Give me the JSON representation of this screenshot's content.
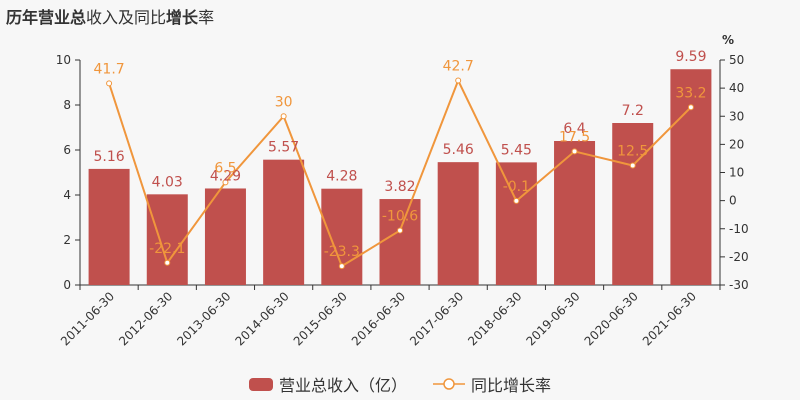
{
  "title_parts": [
    {
      "text": "历年",
      "bold": true
    },
    {
      "text": "营业总",
      "bold": true
    },
    {
      "text": "收入及同比",
      "bold": false
    },
    {
      "text": "增长",
      "bold": true
    },
    {
      "text": "率",
      "bold": false
    }
  ],
  "colors": {
    "bar": "#c0504d",
    "line": "#f0963c",
    "axis": "#333333"
  },
  "legend": {
    "bar_label": "营业总收入（亿）",
    "line_label": "同比增长率"
  },
  "chart_data": {
    "type": "bar",
    "categories": [
      "2011-06-30",
      "2012-06-30",
      "2013-06-30",
      "2014-06-30",
      "2015-06-30",
      "2016-06-30",
      "2017-06-30",
      "2018-06-30",
      "2019-06-30",
      "2020-06-30",
      "2021-06-30"
    ],
    "series": [
      {
        "name": "营业总收入（亿）",
        "type": "bar",
        "axis": "left",
        "values": [
          5.16,
          4.03,
          4.29,
          5.57,
          4.28,
          3.82,
          5.46,
          5.45,
          6.4,
          7.2,
          9.59
        ],
        "labels": [
          "5.16",
          "4.03",
          "4.29",
          "5.57",
          "4.28",
          "3.82",
          "5.46",
          "5.45",
          "6.4",
          "7.2",
          "9.59"
        ]
      },
      {
        "name": "同比增长率",
        "type": "line",
        "axis": "right",
        "values": [
          41.7,
          -22.1,
          6.5,
          30,
          -23.3,
          -10.6,
          42.7,
          -0.1,
          17.5,
          12.5,
          33.2
        ],
        "labels": [
          "41.7",
          "-22.1",
          "6.5",
          "30",
          "-23.3",
          "-10.6",
          "42.7",
          "-0.1",
          "17.5",
          "12.5",
          "33.2"
        ]
      }
    ],
    "y_left": {
      "min": 0,
      "max": 10,
      "ticks": [
        "0",
        "2",
        "4",
        "6",
        "8",
        "10"
      ]
    },
    "y_right": {
      "min": -30,
      "max": 50,
      "unit": "%",
      "ticks": [
        "-30",
        "-20",
        "-10",
        "0",
        "10",
        "20",
        "30",
        "40",
        "50"
      ]
    },
    "grid": false,
    "legend_position": "bottom"
  }
}
